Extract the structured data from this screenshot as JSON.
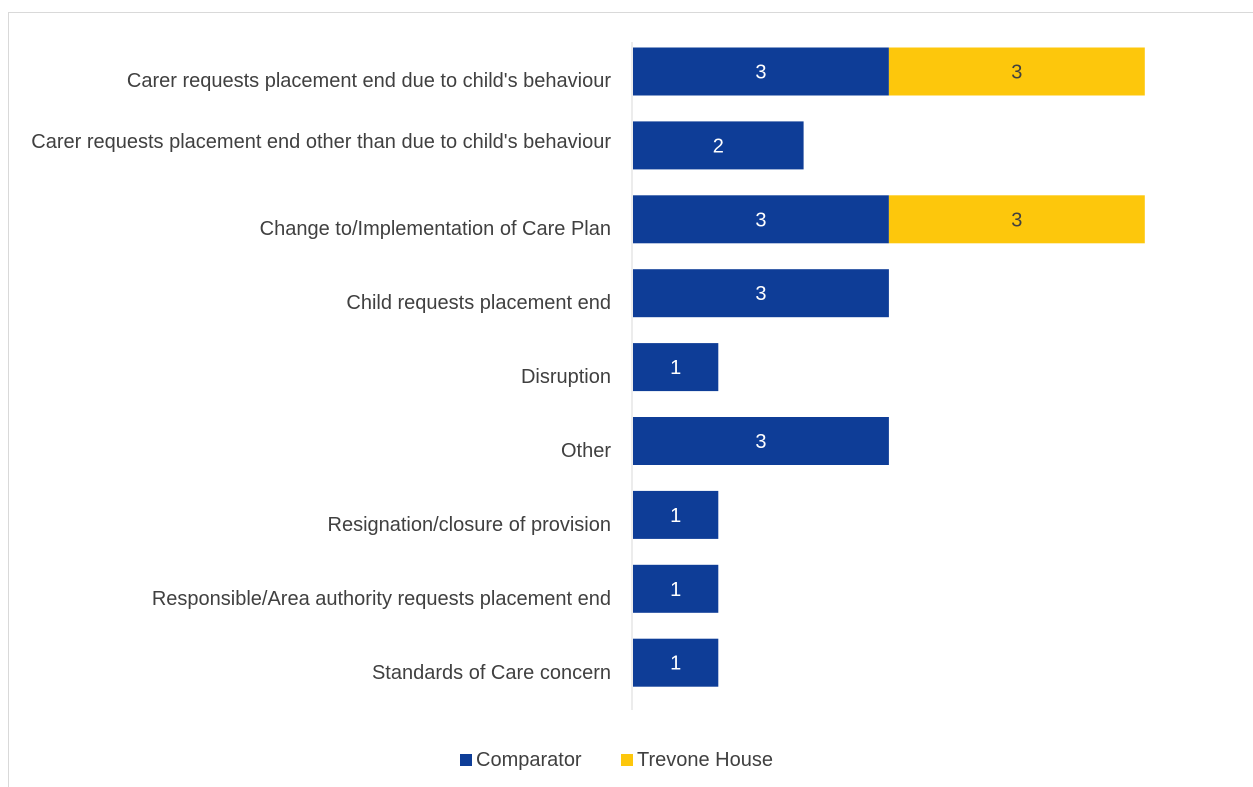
{
  "chart_data": {
    "type": "bar",
    "orientation": "horizontal",
    "stacked": true,
    "categories": [
      "Carer requests placement end due to child's behaviour",
      "Carer requests placement end other than due to child's behaviour",
      "Change to/Implementation of Care Plan",
      "Child requests placement end",
      "Disruption",
      "Other",
      "Resignation/closure of provision",
      "Responsible/Area authority requests placement end",
      "Standards of Care concern"
    ],
    "series": [
      {
        "name": "Comparator",
        "color": "#0e3d97",
        "label_color": "#ffffff",
        "values": [
          3,
          2,
          3,
          3,
          1,
          3,
          1,
          1,
          1
        ]
      },
      {
        "name": "Trevone House",
        "color": "#fdc70c",
        "label_color": "#404040",
        "values": [
          3,
          0,
          3,
          0,
          0,
          0,
          0,
          0,
          0
        ]
      }
    ],
    "xlim": [
      0,
      7
    ],
    "grid": false,
    "legend": "bottom"
  }
}
